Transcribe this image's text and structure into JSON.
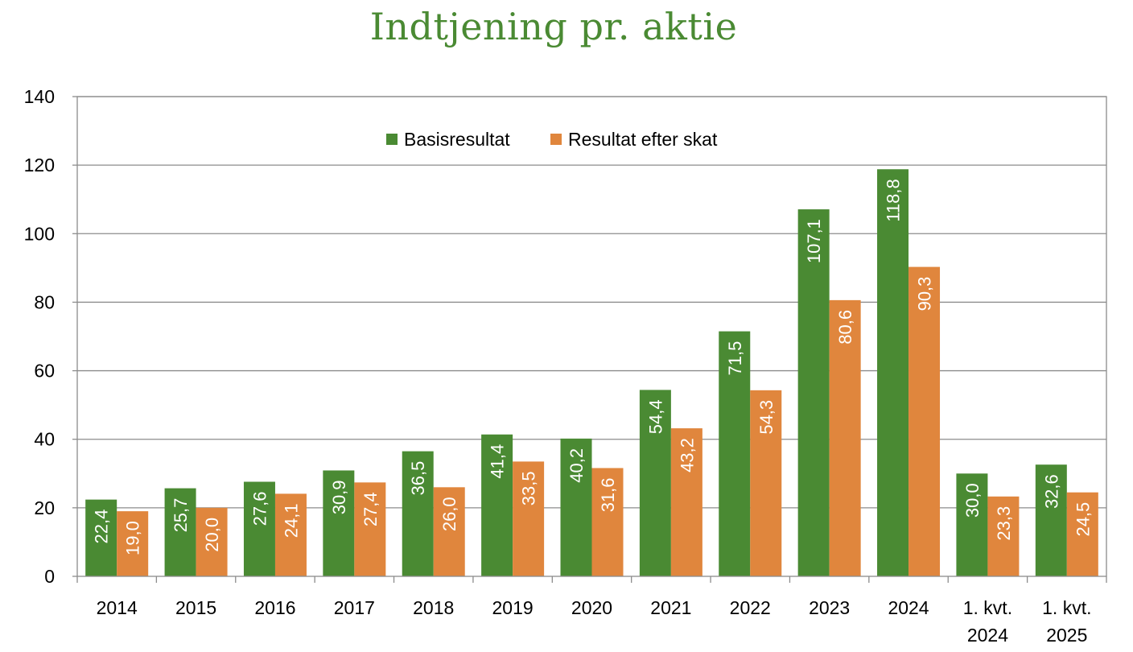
{
  "chart_data": {
    "type": "bar",
    "title": "Indtjening pr. aktie",
    "xlabel": "",
    "ylabel": "",
    "categories": [
      [
        "2014"
      ],
      [
        "2015"
      ],
      [
        "2016"
      ],
      [
        "2017"
      ],
      [
        "2018"
      ],
      [
        "2019"
      ],
      [
        "2020"
      ],
      [
        "2021"
      ],
      [
        "2022"
      ],
      [
        "2023"
      ],
      [
        "2024"
      ],
      [
        "1. kvt.",
        "2024"
      ],
      [
        "1. kvt.",
        "2025"
      ]
    ],
    "series": [
      {
        "name": "Basisresultat",
        "color": "#4a8a33",
        "values": [
          22.4,
          25.7,
          27.6,
          30.9,
          36.5,
          41.4,
          40.2,
          54.4,
          71.5,
          107.1,
          118.8,
          30.0,
          32.6
        ],
        "labels": [
          "22,4",
          "25,7",
          "27,6",
          "30,9",
          "36,5",
          "41,4",
          "40,2",
          "54,4",
          "71,5",
          "107,1",
          "118,8",
          "30,0",
          "32,6"
        ]
      },
      {
        "name": "Resultat efter skat",
        "color": "#e0863d",
        "values": [
          19.0,
          20.0,
          24.1,
          27.4,
          26.0,
          33.5,
          31.6,
          43.2,
          54.3,
          80.6,
          90.3,
          23.3,
          24.5
        ],
        "labels": [
          "19,0",
          "20,0",
          "24,1",
          "27,4",
          "26,0",
          "33,5",
          "31,6",
          "43,2",
          "54,3",
          "80,6",
          "90,3",
          "23,3",
          "24,5"
        ]
      }
    ],
    "ylim": [
      0,
      140
    ],
    "yticks": [
      0,
      20,
      40,
      60,
      80,
      100,
      120,
      140
    ],
    "grid": true,
    "legend_position": "top-center",
    "title_color": "#4a8a33"
  }
}
